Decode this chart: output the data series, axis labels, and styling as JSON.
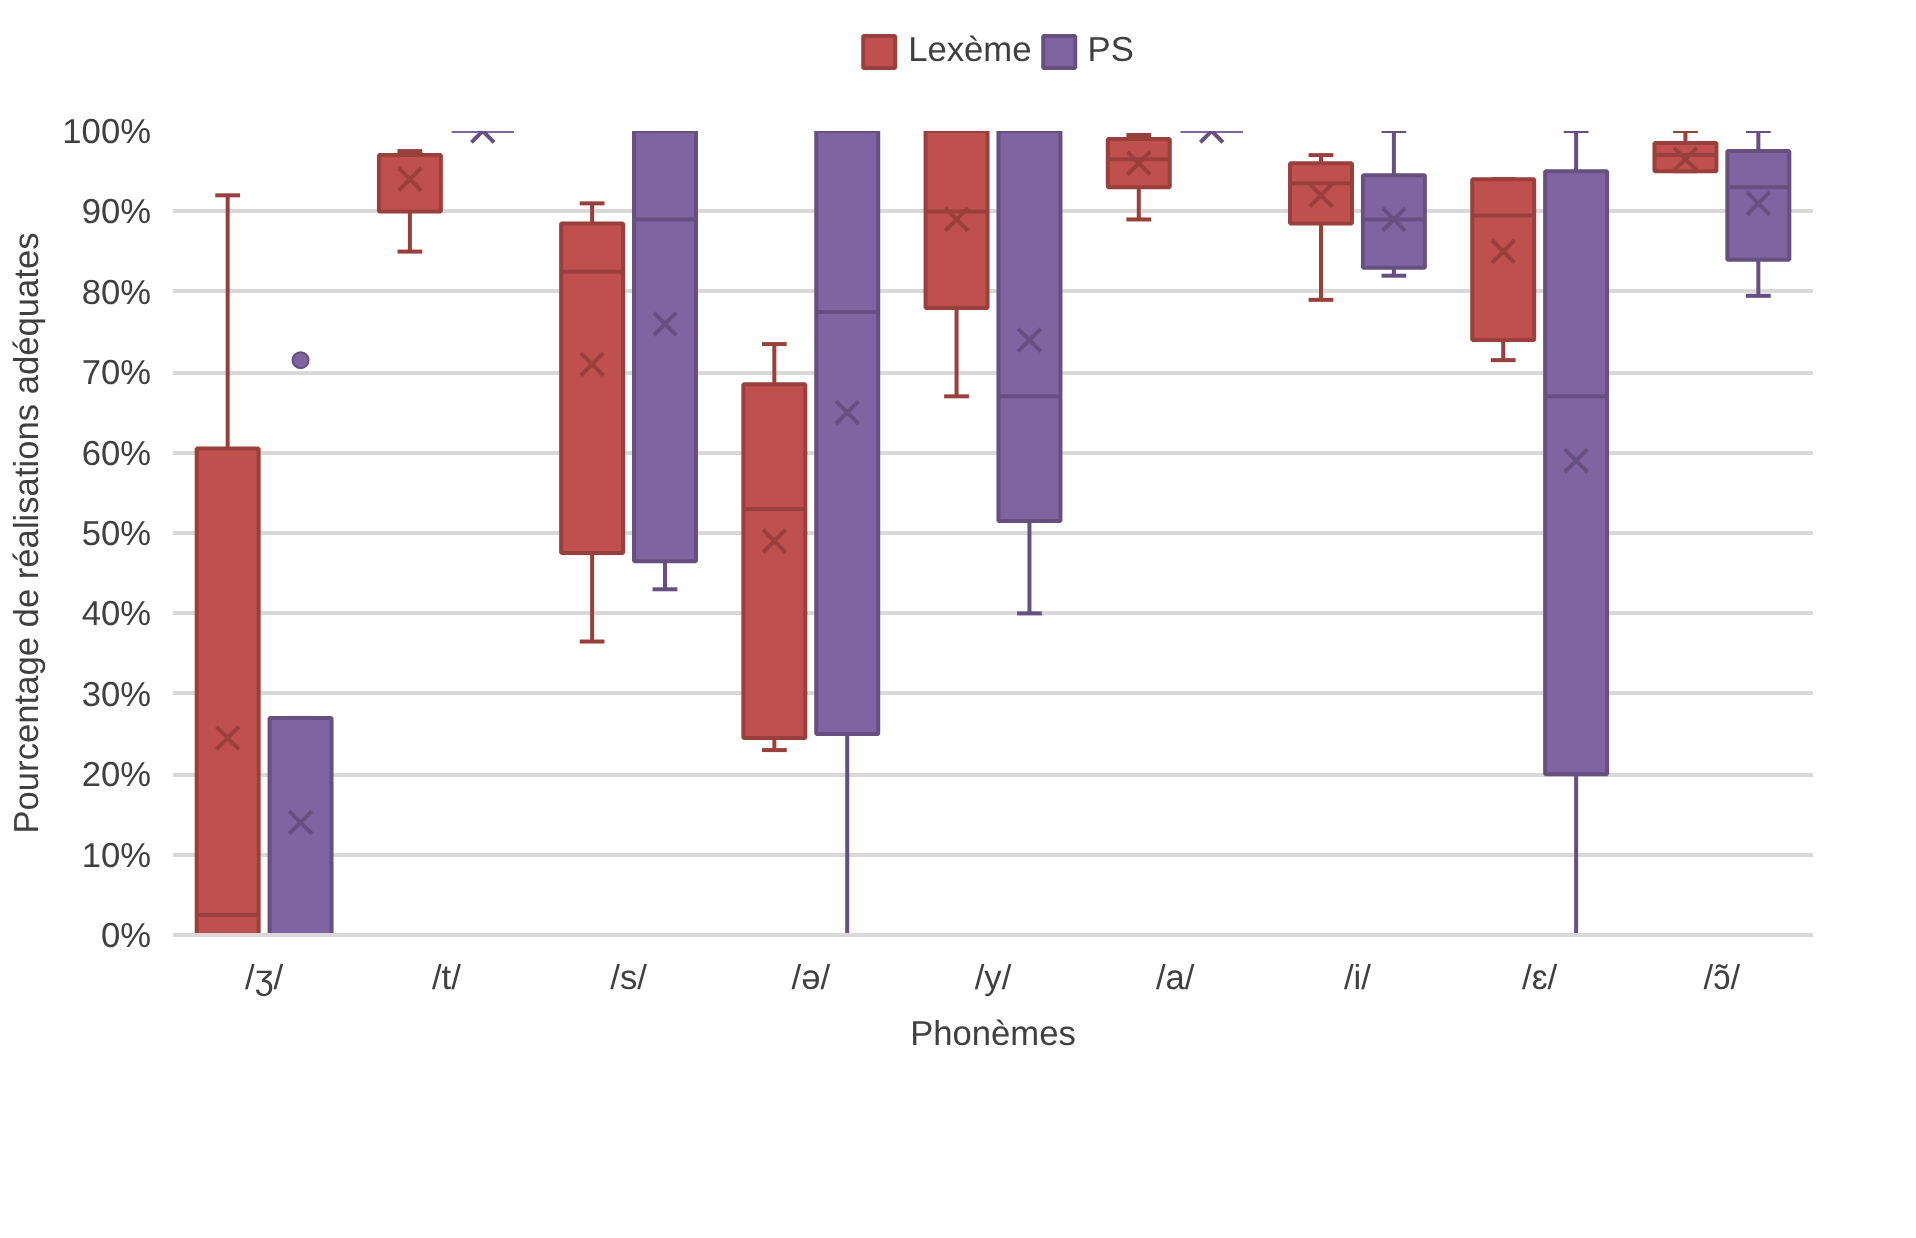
{
  "chart_data": {
    "type": "box",
    "xlabel": "Phonèmes",
    "ylabel": "Pourcentage de réalisations adéquates",
    "categories": [
      "/ʒ/",
      "/t/",
      "/s/",
      "/ə/",
      "/y/",
      "/a/",
      "/i/",
      "/ɛ/",
      "/ɔ̃/"
    ],
    "series": [
      {
        "name": "Lexème",
        "color": "#c0504d",
        "boxes": [
          {
            "low": 0,
            "q1": 0,
            "median": 2.5,
            "q3": 60.5,
            "high": 92,
            "mean": 24.5
          },
          {
            "low": 85,
            "q1": 90,
            "median": 97,
            "q3": 97,
            "high": 97.5,
            "mean": 94
          },
          {
            "low": 36.5,
            "q1": 47.5,
            "median": 82.5,
            "q3": 88.5,
            "high": 91,
            "mean": 71
          },
          {
            "low": 23,
            "q1": 24.5,
            "median": 53,
            "q3": 68.5,
            "high": 73.5,
            "mean": 49
          },
          {
            "low": 67,
            "q1": 78,
            "median": 90,
            "q3": 100,
            "high": 100,
            "mean": 89
          },
          {
            "low": 89,
            "q1": 93,
            "median": 96.5,
            "q3": 99,
            "high": 99.5,
            "mean": 96
          },
          {
            "low": 79,
            "q1": 88.5,
            "median": 93.5,
            "q3": 96,
            "high": 97,
            "mean": 92
          },
          {
            "low": 71.5,
            "q1": 74,
            "median": 89.5,
            "q3": 94,
            "high": 94,
            "mean": 85
          },
          {
            "low": 95,
            "q1": 95,
            "median": 97,
            "q3": 98.5,
            "high": 100,
            "mean": 96.5
          }
        ]
      },
      {
        "name": "PS",
        "color": "#8064a2",
        "boxes": [
          {
            "low": 0,
            "q1": 0,
            "median": 0,
            "q3": 27,
            "high": 27,
            "mean": 14,
            "outliers": [
              71.5
            ]
          },
          {
            "low": 100,
            "q1": 100,
            "median": 100,
            "q3": 100,
            "high": 100,
            "mean": 100
          },
          {
            "low": 43,
            "q1": 46.5,
            "median": 89,
            "q3": 100,
            "high": 100,
            "mean": 76
          },
          {
            "low": 0,
            "q1": 25,
            "median": 77.5,
            "q3": 100,
            "high": 100,
            "mean": 65
          },
          {
            "low": 40,
            "q1": 51.5,
            "median": 67,
            "q3": 100,
            "high": 100,
            "mean": 74
          },
          {
            "low": 100,
            "q1": 100,
            "median": 100,
            "q3": 100,
            "high": 100,
            "mean": 100
          },
          {
            "low": 82,
            "q1": 83,
            "median": 89,
            "q3": 94.5,
            "high": 100,
            "mean": 89
          },
          {
            "low": 0,
            "q1": 20,
            "median": 67,
            "q3": 95,
            "high": 100,
            "mean": 59
          },
          {
            "low": 79.5,
            "q1": 84,
            "median": 93,
            "q3": 97.5,
            "high": 100,
            "mean": 91
          }
        ]
      }
    ],
    "ylim": [
      0,
      100
    ],
    "yticks": [
      {
        "value": 0,
        "label": "0%"
      },
      {
        "value": 10,
        "label": "10%"
      },
      {
        "value": 20,
        "label": "20%"
      },
      {
        "value": 30,
        "label": "30%"
      },
      {
        "value": 40,
        "label": "40%"
      },
      {
        "value": 50,
        "label": "50%"
      },
      {
        "value": 60,
        "label": "60%"
      },
      {
        "value": 70,
        "label": "70%"
      },
      {
        "value": 80,
        "label": "80%"
      },
      {
        "value": 90,
        "label": "90%"
      },
      {
        "value": 100,
        "label": "100%"
      }
    ],
    "grid": "y",
    "legend": "top"
  }
}
